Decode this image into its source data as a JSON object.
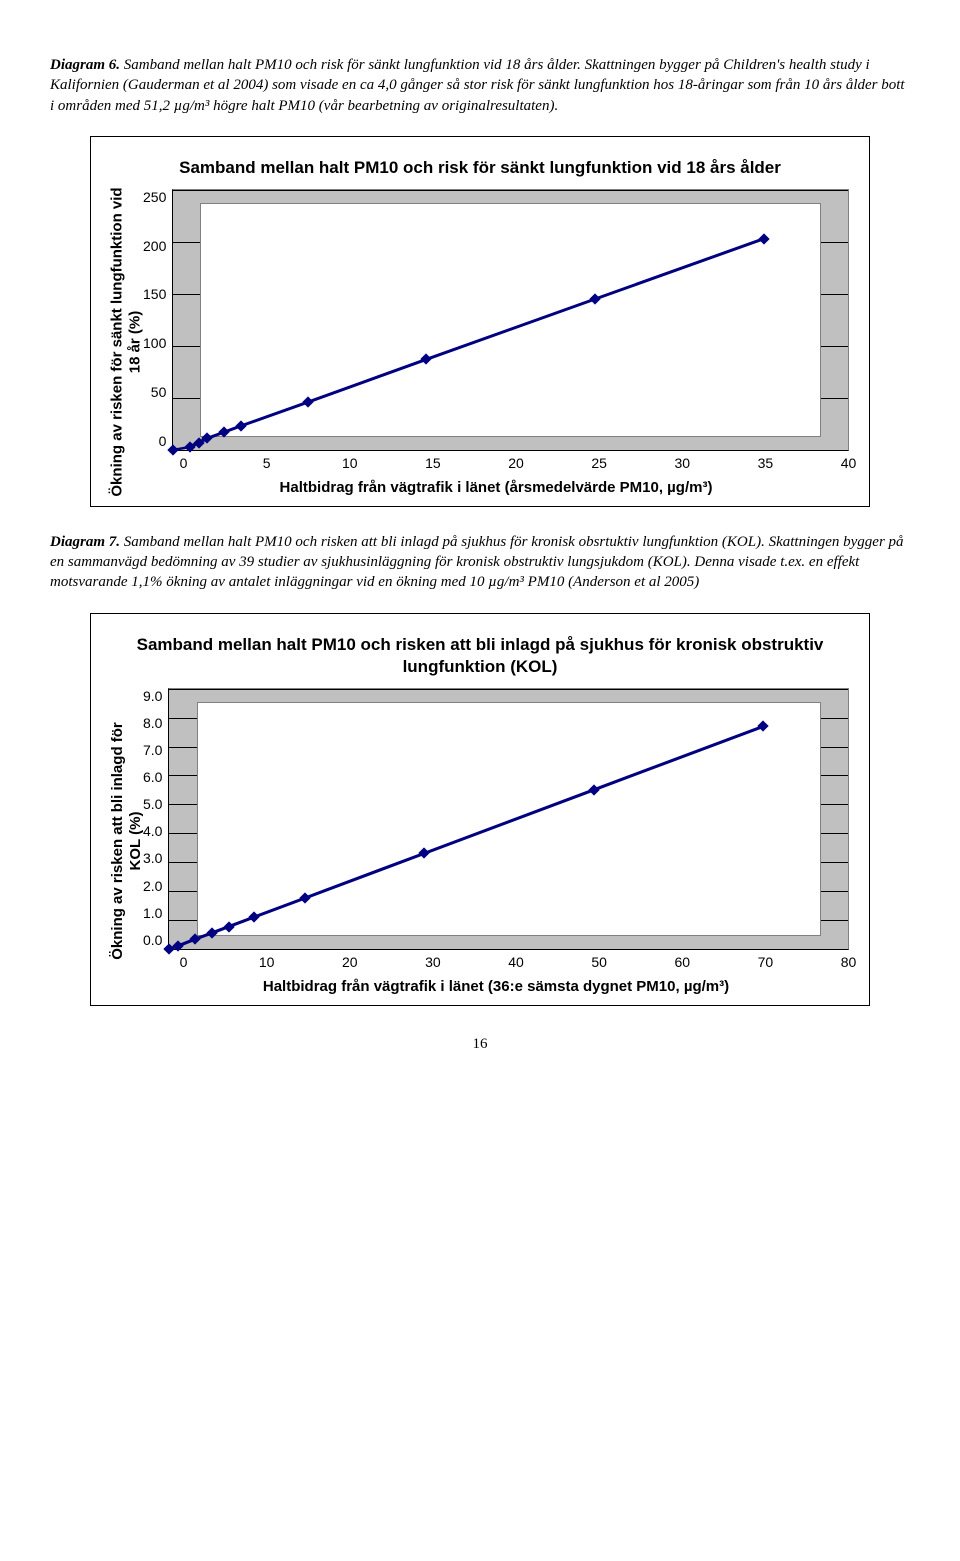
{
  "diagram6": {
    "heading_bold": "Diagram 6.",
    "heading_rest": " Samband mellan halt PM10 och risk för sänkt lungfunktion vid 18 års ålder. Skattningen bygger på Children's health study i Kalifornien (Gauderman et al 2004) som visade en ca 4,0 gånger så stor risk för sänkt lungfunktion hos 18-åringar som från 10 års ålder bott i områden med 51,2 µg/m³ högre halt PM10 (vår bearbetning av originalresultaten)."
  },
  "chart1": {
    "title": "Samband mellan halt PM10 och risk för sänkt lungfunktion vid 18 års ålder",
    "ylabel": "Ökning av risken för sänkt lungfunktion vid\n18 år (%)",
    "xlabel": "Haltbidrag från vägtrafik i länet (årsmedelvärde PM10, µg/m³)",
    "yticks": [
      "250",
      "200",
      "150",
      "100",
      "50",
      "0"
    ],
    "xticks": [
      "0",
      "5",
      "10",
      "15",
      "20",
      "25",
      "30",
      "35",
      "40"
    ],
    "ymax": 250,
    "xmax": 40,
    "inner": {
      "left_pct": 4,
      "right_pct": 96,
      "top_pct": 5,
      "bottom_pct": 95
    },
    "points": [
      {
        "x": 0,
        "y": 0
      },
      {
        "x": 1,
        "y": 3
      },
      {
        "x": 1.5,
        "y": 7
      },
      {
        "x": 2,
        "y": 11
      },
      {
        "x": 3,
        "y": 17
      },
      {
        "x": 4,
        "y": 23
      },
      {
        "x": 8,
        "y": 46
      },
      {
        "x": 15,
        "y": 87
      },
      {
        "x": 25,
        "y": 145
      },
      {
        "x": 35,
        "y": 203
      }
    ],
    "line_color": "#000080",
    "marker_color": "#000080",
    "bg": "#c0c0c0",
    "inner_bg": "#ffffff"
  },
  "diagram7": {
    "heading_bold": "Diagram 7.",
    "heading_rest": " Samband mellan halt PM10 och risken att bli inlagd på sjukhus för kronisk obsrtuktiv lungfunktion (KOL). Skattningen bygger på en sammanvägd bedömning av 39 studier av sjukhusinläggning för kronisk obstruktiv lungsjukdom (KOL). Denna visade t.ex. en effekt motsvarande 1,1% ökning av antalet inläggningar vid en ökning med 10 µg/m³ PM10 (Anderson et al 2005)"
  },
  "chart2": {
    "title": "Samband mellan halt PM10 och risken att bli inlagd på sjukhus för kronisk obstruktiv lungfunktion (KOL)",
    "ylabel": "Ökning av risken att bli inlagd för\nKOL (%)",
    "xlabel": "Haltbidrag från vägtrafik i länet (36:e sämsta dygnet PM10, µg/m³)",
    "yticks": [
      "9.0",
      "8.0",
      "7.0",
      "6.0",
      "5.0",
      "4.0",
      "3.0",
      "2.0",
      "1.0",
      "0.0"
    ],
    "xticks": [
      "0",
      "10",
      "20",
      "30",
      "40",
      "50",
      "60",
      "70",
      "80"
    ],
    "ymax": 9,
    "xmax": 80,
    "inner": {
      "left_pct": 4,
      "right_pct": 96,
      "top_pct": 5,
      "bottom_pct": 95
    },
    "points": [
      {
        "x": 0,
        "y": 0.0
      },
      {
        "x": 1,
        "y": 0.1
      },
      {
        "x": 3,
        "y": 0.33
      },
      {
        "x": 5,
        "y": 0.55
      },
      {
        "x": 7,
        "y": 0.77
      },
      {
        "x": 10,
        "y": 1.1
      },
      {
        "x": 16,
        "y": 1.76
      },
      {
        "x": 30,
        "y": 3.3
      },
      {
        "x": 50,
        "y": 5.5
      },
      {
        "x": 70,
        "y": 7.7
      }
    ],
    "line_color": "#000080",
    "marker_color": "#000080",
    "bg": "#c0c0c0",
    "inner_bg": "#ffffff"
  },
  "page_number": "16"
}
